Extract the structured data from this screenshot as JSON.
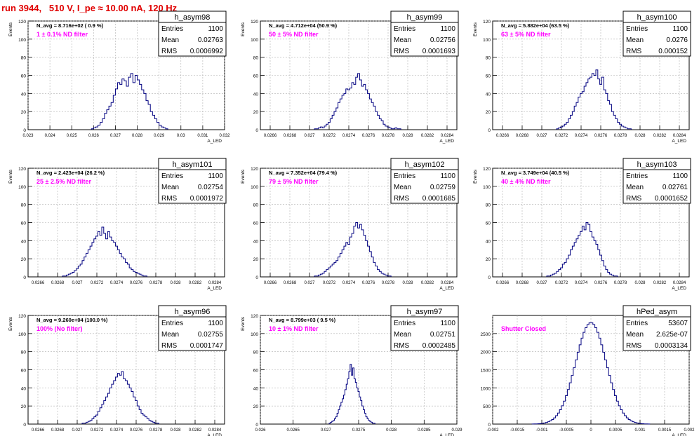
{
  "page_title": "run 3944,   510 V, I_pe ≈ 10.00 nA, 120 Hz",
  "colors": {
    "hist": "#000080",
    "annotation": "#ff00ff",
    "title": "#e00000",
    "grid": "#b0b0b0"
  },
  "chart_data": [
    {
      "type": "histogram",
      "name": "h_asym98",
      "navg": "N_avg = 8.716e+02 ( 0.9 %)",
      "note": "1 ± 0.1% ND filter",
      "stats": [
        [
          "Entries",
          "1100"
        ],
        [
          "Mean",
          "0.02763"
        ],
        [
          "RMS",
          "0.0006992"
        ]
      ],
      "ylabel": "Events",
      "xlabel": "A_LED",
      "ylim": [
        0,
        120
      ],
      "yticks": [
        0,
        20,
        40,
        60,
        80,
        100,
        120
      ],
      "xlim": [
        0.023,
        0.032
      ],
      "xticks": [
        "0.023",
        "0.024",
        "0.025",
        "0.026",
        "0.027",
        "0.028",
        "0.029",
        "0.03",
        "0.031",
        "0.032"
      ],
      "bins": {
        "start": 0.0259,
        "width": 0.0001,
        "values": [
          1,
          2,
          3,
          5,
          8,
          12,
          18,
          22,
          26,
          30,
          38,
          45,
          52,
          50,
          56,
          54,
          48,
          58,
          62,
          52,
          60,
          55,
          50,
          44,
          40,
          32,
          28,
          20,
          16,
          12,
          8,
          5,
          3,
          2,
          1
        ]
      }
    },
    {
      "type": "histogram",
      "name": "h_asym99",
      "navg": "N_avg = 4.712e+04 (50.9 %)",
      "note": "50 ± 5% ND filter",
      "stats": [
        [
          "Entries",
          "1100"
        ],
        [
          "Mean",
          "0.02756"
        ],
        [
          "RMS",
          "0.0001693"
        ]
      ],
      "ylabel": "Events",
      "xlabel": "A_LED",
      "ylim": [
        0,
        120
      ],
      "yticks": [
        0,
        20,
        40,
        60,
        80,
        100,
        120
      ],
      "xlim": [
        0.0265,
        0.0285
      ],
      "xticks": [
        "0.0266",
        "0.0268",
        "0.027",
        "0.0272",
        "0.0274",
        "0.0276",
        "0.0278",
        "0.028",
        "0.0282",
        "0.0284"
      ],
      "bins": {
        "start": 0.02705,
        "width": 2e-05,
        "values": [
          1,
          1,
          2,
          3,
          2,
          4,
          6,
          8,
          12,
          16,
          20,
          24,
          30,
          34,
          38,
          40,
          45,
          44,
          46,
          52,
          50,
          58,
          62,
          55,
          48,
          50,
          44,
          40,
          34,
          30,
          26,
          20,
          16,
          12,
          10,
          6,
          4,
          3,
          2,
          1,
          1,
          2,
          1,
          1
        ]
      }
    },
    {
      "type": "histogram",
      "name": "h_asym100",
      "navg": "N_avg = 5.882e+04 (63.5 %)",
      "note": "63 ± 5% ND filter",
      "stats": [
        [
          "Entries",
          "1100"
        ],
        [
          "Mean",
          "0.0276"
        ],
        [
          "RMS",
          "0.000152"
        ]
      ],
      "ylabel": "Events",
      "xlabel": "A_LED",
      "ylim": [
        0,
        120
      ],
      "yticks": [
        0,
        20,
        40,
        60,
        80,
        100,
        120
      ],
      "xlim": [
        0.0265,
        0.0285
      ],
      "xticks": [
        "0.0266",
        "0.0268",
        "0.027",
        "0.0272",
        "0.0274",
        "0.0276",
        "0.0278",
        "0.028",
        "0.0282",
        "0.0284"
      ],
      "bins": {
        "start": 0.02715,
        "width": 2e-05,
        "values": [
          1,
          2,
          3,
          4,
          6,
          8,
          12,
          16,
          20,
          26,
          30,
          36,
          40,
          42,
          48,
          52,
          56,
          58,
          62,
          60,
          66,
          56,
          50,
          58,
          44,
          40,
          32,
          28,
          20,
          16,
          12,
          8,
          6,
          4,
          3,
          2,
          1,
          1
        ]
      }
    },
    {
      "type": "histogram",
      "name": "h_asym101",
      "navg": "N_avg = 2.423e+04 (26.2 %)",
      "note": "25 ± 2.5% ND filter",
      "stats": [
        [
          "Entries",
          "1100"
        ],
        [
          "Mean",
          "0.02754"
        ],
        [
          "RMS",
          "0.0001972"
        ]
      ],
      "ylabel": "Events",
      "xlabel": "A_LED",
      "ylim": [
        0,
        120
      ],
      "yticks": [
        0,
        20,
        40,
        60,
        80,
        100,
        120
      ],
      "xlim": [
        0.0265,
        0.0285
      ],
      "xticks": [
        "0.0266",
        "0.0268",
        "0.027",
        "0.0272",
        "0.0274",
        "0.0276",
        "0.0278",
        "0.028",
        "0.0282",
        "0.0284"
      ],
      "bins": {
        "start": 0.02685,
        "width": 2e-05,
        "values": [
          1,
          1,
          2,
          3,
          4,
          5,
          7,
          9,
          12,
          14,
          18,
          22,
          26,
          30,
          34,
          38,
          42,
          45,
          50,
          46,
          55,
          48,
          42,
          50,
          44,
          40,
          38,
          34,
          30,
          26,
          22,
          20,
          16,
          14,
          10,
          8,
          6,
          5,
          4,
          3,
          2,
          1,
          1
        ]
      }
    },
    {
      "type": "histogram",
      "name": "h_asym102",
      "navg": "N_avg = 7.352e+04 (79.4 %)",
      "note": "79 ± 5% ND filter",
      "stats": [
        [
          "Entries",
          "1100"
        ],
        [
          "Mean",
          "0.02759"
        ],
        [
          "RMS",
          "0.0001685"
        ]
      ],
      "ylabel": "Events",
      "xlabel": "A_LED",
      "ylim": [
        0,
        120
      ],
      "yticks": [
        0,
        20,
        40,
        60,
        80,
        100,
        120
      ],
      "xlim": [
        0.0265,
        0.0285
      ],
      "xticks": [
        "0.0266",
        "0.0268",
        "0.027",
        "0.0272",
        "0.0274",
        "0.0276",
        "0.0278",
        "0.028",
        "0.0282",
        "0.0284"
      ],
      "bins": {
        "start": 0.02705,
        "width": 2e-05,
        "values": [
          1,
          1,
          2,
          3,
          4,
          6,
          8,
          10,
          12,
          14,
          16,
          18,
          22,
          26,
          30,
          34,
          38,
          36,
          44,
          48,
          56,
          60,
          54,
          58,
          52,
          46,
          40,
          34,
          28,
          22,
          16,
          12,
          8,
          6,
          4,
          3,
          2,
          1,
          1
        ]
      }
    },
    {
      "type": "histogram",
      "name": "h_asym103",
      "navg": "N_avg = 3.749e+04 (40.5 %)",
      "note": "40 ± 4% ND filter",
      "stats": [
        [
          "Entries",
          "1100"
        ],
        [
          "Mean",
          "0.02761"
        ],
        [
          "RMS",
          "0.0001652"
        ]
      ],
      "ylabel": "Events",
      "xlabel": "A_LED",
      "ylim": [
        0,
        120
      ],
      "yticks": [
        0,
        20,
        40,
        60,
        80,
        100,
        120
      ],
      "xlim": [
        0.0265,
        0.0285
      ],
      "xticks": [
        "0.0266",
        "0.0268",
        "0.027",
        "0.0272",
        "0.0274",
        "0.0276",
        "0.0278",
        "0.028",
        "0.0282",
        "0.0284"
      ],
      "bins": {
        "start": 0.02705,
        "width": 2e-05,
        "values": [
          1,
          1,
          2,
          3,
          4,
          6,
          8,
          10,
          14,
          16,
          20,
          24,
          30,
          34,
          38,
          42,
          46,
          50,
          56,
          52,
          60,
          58,
          50,
          44,
          40,
          36,
          30,
          24,
          18,
          12,
          8,
          5,
          3,
          2,
          1,
          1
        ]
      }
    },
    {
      "type": "histogram",
      "name": "h_asym96",
      "navg": "N_avg = 9.260e+04 (100.0 %)",
      "note": "100% (No filter)",
      "stats": [
        [
          "Entries",
          "1100"
        ],
        [
          "Mean",
          "0.02755"
        ],
        [
          "RMS",
          "0.0001747"
        ]
      ],
      "ylabel": "Events",
      "xlabel": "A_LED",
      "ylim": [
        0,
        120
      ],
      "yticks": [
        0,
        20,
        40,
        60,
        80,
        100,
        120
      ],
      "xlim": [
        0.0265,
        0.0285
      ],
      "xticks": [
        "0.0266",
        "0.0268",
        "0.027",
        "0.0272",
        "0.0274",
        "0.0276",
        "0.0278",
        "0.028",
        "0.0282",
        "0.0284"
      ],
      "bins": {
        "start": 0.02705,
        "width": 2e-05,
        "values": [
          1,
          1,
          2,
          3,
          4,
          6,
          8,
          10,
          14,
          18,
          22,
          26,
          30,
          34,
          40,
          44,
          48,
          52,
          56,
          54,
          58,
          50,
          48,
          44,
          40,
          36,
          30,
          26,
          20,
          16,
          12,
          10,
          8,
          6,
          4,
          3,
          2,
          1,
          1
        ]
      }
    },
    {
      "type": "histogram",
      "name": "h_asym97",
      "navg": "N_avg = 8.799e+03 ( 9.5 %)",
      "note": "10 ± 1% ND filter",
      "stats": [
        [
          "Entries",
          "1100"
        ],
        [
          "Mean",
          "0.02751"
        ],
        [
          "RMS",
          "0.0002485"
        ]
      ],
      "ylabel": "Events",
      "xlabel": "A_LED",
      "ylim": [
        0,
        120
      ],
      "yticks": [
        0,
        20,
        40,
        60,
        80,
        100,
        120
      ],
      "xlim": [
        0.026,
        0.029
      ],
      "xticks": [
        "0.026",
        "0.0265",
        "0.027",
        "0.0275",
        "0.028",
        "0.0285",
        "0.029"
      ],
      "bins": {
        "start": 0.02705,
        "width": 2e-05,
        "values": [
          1,
          2,
          3,
          4,
          6,
          8,
          12,
          16,
          20,
          24,
          28,
          32,
          38,
          44,
          50,
          58,
          66,
          54,
          62,
          50,
          46,
          40,
          36,
          30,
          26,
          20,
          16,
          12,
          8,
          6,
          4,
          3,
          2,
          1,
          1
        ]
      }
    },
    {
      "type": "histogram",
      "name": "hPed_asym",
      "navg": "",
      "note": "Shutter Closed",
      "stats": [
        [
          "Entries",
          "53607"
        ],
        [
          "Mean",
          "2.625e-07"
        ],
        [
          "RMS",
          "0.0003134"
        ]
      ],
      "ylabel": "",
      "xlabel": "A_LED",
      "ylim": [
        0,
        3000
      ],
      "yticks": [
        0,
        500,
        1000,
        1500,
        2000,
        2500
      ],
      "xlim": [
        -0.002,
        0.002
      ],
      "xticks": [
        "-0.002",
        "-0.0015",
        "-0.001",
        "-0.0005",
        "0",
        "0.0005",
        "0.001",
        "0.0015",
        "0.002"
      ],
      "bins": {
        "gauss": true,
        "mean": 0.0,
        "sigma": 0.0003134,
        "peak": 2800,
        "start": -0.0012,
        "width": 4e-05,
        "count": 60
      }
    }
  ]
}
